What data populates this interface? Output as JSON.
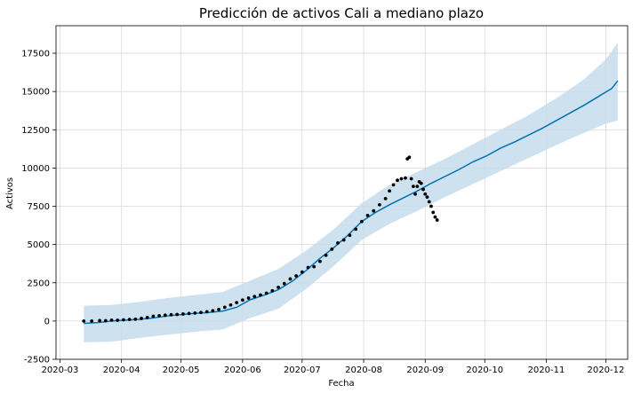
{
  "chart_data": {
    "type": "line",
    "title": "Predicción de activos Cali a mediano plazo",
    "xlabel": "Fecha",
    "ylabel": "Activos",
    "x_ticks": [
      "2020-03",
      "2020-04",
      "2020-05",
      "2020-06",
      "2020-07",
      "2020-08",
      "2020-09",
      "2020-10",
      "2020-11",
      "2020-12"
    ],
    "y_ticks": [
      -2500,
      0,
      2500,
      5000,
      7500,
      10000,
      12500,
      15000,
      17500
    ],
    "xlim": [
      "2020-02-28",
      "2020-12-12"
    ],
    "ylim": [
      -2500,
      19300
    ],
    "grid": true,
    "colors": {
      "forecast": "#0072B2",
      "band": "#c6dcec",
      "observed": "#000000",
      "grid": "#d9d9d9"
    },
    "forecast": [
      {
        "x": "2020-03-13",
        "y": -150
      },
      {
        "x": "2020-03-20",
        "y": -100
      },
      {
        "x": "2020-03-27",
        "y": 0
      },
      {
        "x": "2020-04-03",
        "y": 60
      },
      {
        "x": "2020-04-10",
        "y": 110
      },
      {
        "x": "2020-04-17",
        "y": 200
      },
      {
        "x": "2020-04-24",
        "y": 330
      },
      {
        "x": "2020-05-01",
        "y": 420
      },
      {
        "x": "2020-05-08",
        "y": 500
      },
      {
        "x": "2020-05-15",
        "y": 560
      },
      {
        "x": "2020-05-22",
        "y": 650
      },
      {
        "x": "2020-05-29",
        "y": 900
      },
      {
        "x": "2020-06-05",
        "y": 1400
      },
      {
        "x": "2020-06-12",
        "y": 1700
      },
      {
        "x": "2020-06-19",
        "y": 2050
      },
      {
        "x": "2020-06-26",
        "y": 2600
      },
      {
        "x": "2020-07-03",
        "y": 3300
      },
      {
        "x": "2020-07-10",
        "y": 4100
      },
      {
        "x": "2020-07-17",
        "y": 4800
      },
      {
        "x": "2020-07-24",
        "y": 5600
      },
      {
        "x": "2020-07-31",
        "y": 6500
      },
      {
        "x": "2020-08-07",
        "y": 7100
      },
      {
        "x": "2020-08-14",
        "y": 7600
      },
      {
        "x": "2020-08-21",
        "y": 8050
      },
      {
        "x": "2020-08-28",
        "y": 8500
      },
      {
        "x": "2020-09-04",
        "y": 9000
      },
      {
        "x": "2020-09-11",
        "y": 9450
      },
      {
        "x": "2020-09-18",
        "y": 9900
      },
      {
        "x": "2020-09-25",
        "y": 10400
      },
      {
        "x": "2020-10-02",
        "y": 10800
      },
      {
        "x": "2020-10-09",
        "y": 11300
      },
      {
        "x": "2020-10-16",
        "y": 11700
      },
      {
        "x": "2020-10-23",
        "y": 12150
      },
      {
        "x": "2020-10-30",
        "y": 12600
      },
      {
        "x": "2020-11-06",
        "y": 13100
      },
      {
        "x": "2020-11-13",
        "y": 13600
      },
      {
        "x": "2020-11-20",
        "y": 14100
      },
      {
        "x": "2020-11-27",
        "y": 14650
      },
      {
        "x": "2020-12-04",
        "y": 15200
      },
      {
        "x": "2020-12-07",
        "y": 15700
      }
    ],
    "forecast_upper": [
      {
        "x": "2020-03-13",
        "y": 1000
      },
      {
        "x": "2020-03-27",
        "y": 1050
      },
      {
        "x": "2020-04-10",
        "y": 1250
      },
      {
        "x": "2020-04-24",
        "y": 1500
      },
      {
        "x": "2020-05-08",
        "y": 1700
      },
      {
        "x": "2020-05-22",
        "y": 1900
      },
      {
        "x": "2020-06-05",
        "y": 2650
      },
      {
        "x": "2020-06-19",
        "y": 3400
      },
      {
        "x": "2020-07-03",
        "y": 4600
      },
      {
        "x": "2020-07-17",
        "y": 6000
      },
      {
        "x": "2020-07-31",
        "y": 7700
      },
      {
        "x": "2020-08-14",
        "y": 8900
      },
      {
        "x": "2020-08-28",
        "y": 9750
      },
      {
        "x": "2020-09-11",
        "y": 10600
      },
      {
        "x": "2020-09-25",
        "y": 11550
      },
      {
        "x": "2020-10-09",
        "y": 12500
      },
      {
        "x": "2020-10-23",
        "y": 13450
      },
      {
        "x": "2020-11-06",
        "y": 14550
      },
      {
        "x": "2020-11-20",
        "y": 15800
      },
      {
        "x": "2020-12-01",
        "y": 17100
      },
      {
        "x": "2020-12-07",
        "y": 18200
      }
    ],
    "forecast_lower": [
      {
        "x": "2020-03-13",
        "y": -1400
      },
      {
        "x": "2020-03-27",
        "y": -1350
      },
      {
        "x": "2020-04-10",
        "y": -1100
      },
      {
        "x": "2020-04-24",
        "y": -900
      },
      {
        "x": "2020-05-08",
        "y": -700
      },
      {
        "x": "2020-05-22",
        "y": -550
      },
      {
        "x": "2020-06-05",
        "y": 200
      },
      {
        "x": "2020-06-19",
        "y": 800
      },
      {
        "x": "2020-07-03",
        "y": 2100
      },
      {
        "x": "2020-07-17",
        "y": 3600
      },
      {
        "x": "2020-07-31",
        "y": 5300
      },
      {
        "x": "2020-08-14",
        "y": 6350
      },
      {
        "x": "2020-08-28",
        "y": 7200
      },
      {
        "x": "2020-09-11",
        "y": 8100
      },
      {
        "x": "2020-09-25",
        "y": 8950
      },
      {
        "x": "2020-10-09",
        "y": 9800
      },
      {
        "x": "2020-10-23",
        "y": 10650
      },
      {
        "x": "2020-11-06",
        "y": 11500
      },
      {
        "x": "2020-11-20",
        "y": 12300
      },
      {
        "x": "2020-12-01",
        "y": 12900
      },
      {
        "x": "2020-12-07",
        "y": 13100
      }
    ],
    "observed": [
      {
        "x": "2020-03-13",
        "y": 0
      },
      {
        "x": "2020-03-17",
        "y": 0
      },
      {
        "x": "2020-03-21",
        "y": 30
      },
      {
        "x": "2020-03-24",
        "y": 20
      },
      {
        "x": "2020-03-27",
        "y": 60
      },
      {
        "x": "2020-03-30",
        "y": 50
      },
      {
        "x": "2020-04-02",
        "y": 80
      },
      {
        "x": "2020-04-05",
        "y": 100
      },
      {
        "x": "2020-04-08",
        "y": 120
      },
      {
        "x": "2020-04-11",
        "y": 170
      },
      {
        "x": "2020-04-14",
        "y": 230
      },
      {
        "x": "2020-04-17",
        "y": 310
      },
      {
        "x": "2020-04-20",
        "y": 350
      },
      {
        "x": "2020-04-23",
        "y": 380
      },
      {
        "x": "2020-04-26",
        "y": 410
      },
      {
        "x": "2020-04-29",
        "y": 430
      },
      {
        "x": "2020-05-02",
        "y": 460
      },
      {
        "x": "2020-05-05",
        "y": 490
      },
      {
        "x": "2020-05-08",
        "y": 520
      },
      {
        "x": "2020-05-11",
        "y": 560
      },
      {
        "x": "2020-05-14",
        "y": 610
      },
      {
        "x": "2020-05-17",
        "y": 670
      },
      {
        "x": "2020-05-20",
        "y": 760
      },
      {
        "x": "2020-05-23",
        "y": 900
      },
      {
        "x": "2020-05-26",
        "y": 1050
      },
      {
        "x": "2020-05-29",
        "y": 1200
      },
      {
        "x": "2020-06-01",
        "y": 1370
      },
      {
        "x": "2020-06-04",
        "y": 1500
      },
      {
        "x": "2020-06-07",
        "y": 1600
      },
      {
        "x": "2020-06-10",
        "y": 1700
      },
      {
        "x": "2020-06-13",
        "y": 1820
      },
      {
        "x": "2020-06-16",
        "y": 1980
      },
      {
        "x": "2020-06-19",
        "y": 2200
      },
      {
        "x": "2020-06-22",
        "y": 2450
      },
      {
        "x": "2020-06-25",
        "y": 2750
      },
      {
        "x": "2020-06-28",
        "y": 2950
      },
      {
        "x": "2020-07-01",
        "y": 3200
      },
      {
        "x": "2020-07-04",
        "y": 3500
      },
      {
        "x": "2020-07-07",
        "y": 3550
      },
      {
        "x": "2020-07-10",
        "y": 3900
      },
      {
        "x": "2020-07-13",
        "y": 4300
      },
      {
        "x": "2020-07-16",
        "y": 4700
      },
      {
        "x": "2020-07-19",
        "y": 5100
      },
      {
        "x": "2020-07-22",
        "y": 5300
      },
      {
        "x": "2020-07-25",
        "y": 5600
      },
      {
        "x": "2020-07-28",
        "y": 6000
      },
      {
        "x": "2020-07-31",
        "y": 6500
      },
      {
        "x": "2020-08-03",
        "y": 6900
      },
      {
        "x": "2020-08-06",
        "y": 7200
      },
      {
        "x": "2020-08-09",
        "y": 7600
      },
      {
        "x": "2020-08-12",
        "y": 8000
      },
      {
        "x": "2020-08-14",
        "y": 8500
      },
      {
        "x": "2020-08-16",
        "y": 8900
      },
      {
        "x": "2020-08-18",
        "y": 9200
      },
      {
        "x": "2020-08-20",
        "y": 9300
      },
      {
        "x": "2020-08-22",
        "y": 9350
      },
      {
        "x": "2020-08-23",
        "y": 10600
      },
      {
        "x": "2020-08-24",
        "y": 10700
      },
      {
        "x": "2020-08-25",
        "y": 9300
      },
      {
        "x": "2020-08-26",
        "y": 8800
      },
      {
        "x": "2020-08-27",
        "y": 8300
      },
      {
        "x": "2020-08-28",
        "y": 8800
      },
      {
        "x": "2020-08-29",
        "y": 9100
      },
      {
        "x": "2020-08-30",
        "y": 9000
      },
      {
        "x": "2020-08-31",
        "y": 8600
      },
      {
        "x": "2020-09-01",
        "y": 8300
      },
      {
        "x": "2020-09-02",
        "y": 8100
      },
      {
        "x": "2020-09-03",
        "y": 7800
      },
      {
        "x": "2020-09-04",
        "y": 7500
      },
      {
        "x": "2020-09-05",
        "y": 7100
      },
      {
        "x": "2020-09-06",
        "y": 6800
      },
      {
        "x": "2020-09-07",
        "y": 6600
      }
    ]
  }
}
